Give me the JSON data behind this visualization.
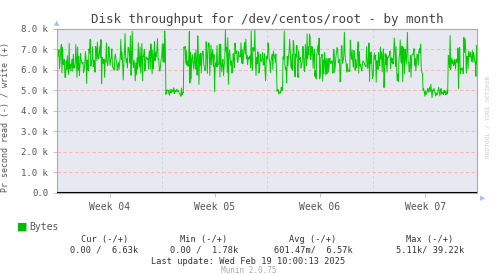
{
  "title": "Disk throughput for /dev/centos/root - by month",
  "ylabel": "Pr second read (-) / write (+)",
  "ylim": [
    0,
    8000
  ],
  "yticks": [
    0,
    1000,
    2000,
    3000,
    4000,
    5000,
    6000,
    7000,
    8000
  ],
  "ytick_labels": [
    "0.0",
    "1.0 k",
    "2.0 k",
    "3.0 k",
    "4.0 k",
    "5.0 k",
    "6.0 k",
    "7.0 k",
    "8.0 k"
  ],
  "xtick_labels": [
    "Week 04",
    "Week 05",
    "Week 06",
    "Week 07"
  ],
  "bg_color": "#ffffff",
  "plot_bg_color": "#e8e8f0",
  "grid_color_h": "#ffaaaa",
  "grid_color_v": "#ccccdd",
  "line_color": "#00cc00",
  "border_color": "#aaaaaa",
  "text_color": "#555555",
  "title_color": "#444444",
  "legend_color": "#00bb00",
  "zero_line_color": "#000000",
  "rrdtool_color": "#cccccc",
  "munin_color": "#aaaaaa",
  "footer_color": "#333333",
  "rrdtool_label": "RRDTOOL / TOBI OETIKER",
  "munin_label": "Munin 2.0.75",
  "legend_label": "Bytes",
  "cur_label": "Cur (-/+)",
  "min_label": "Min (-/+)",
  "avg_label": "Avg (-/+)",
  "max_label": "Max (-/+)",
  "cur_val": "0.00 /  6.63k",
  "min_val": "0.00 /  1.78k",
  "avg_val": "601.47m/  6.57k",
  "max_val": "5.11k/ 39.22k",
  "last_update": "Last update: Wed Feb 19 10:00:13 2025",
  "seed": 42,
  "num_points": 700,
  "base_value": 6500,
  "noise_scale": 500
}
